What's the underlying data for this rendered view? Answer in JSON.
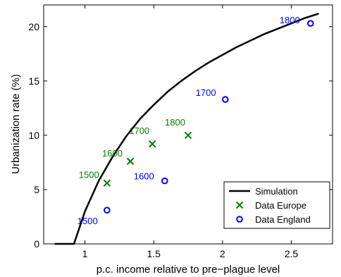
{
  "chart_data": {
    "type": "scatter",
    "title": "",
    "xlabel": "p.c. income relative to pre−plague level",
    "ylabel": "Urbanization rate (%)",
    "xlim": [
      0.7,
      2.8
    ],
    "ylim": [
      0,
      22
    ],
    "xticks": [
      1,
      1.5,
      2,
      2.5
    ],
    "xtick_labels": [
      "1",
      "1.5",
      "2",
      "2.5"
    ],
    "yticks": [
      0,
      5,
      10,
      15,
      20
    ],
    "ytick_labels": [
      "0",
      "5",
      "10",
      "15",
      "20"
    ],
    "grid": false,
    "legend_position": "bottom-right",
    "series": [
      {
        "name": "Simulation",
        "kind": "line",
        "color": "#000000",
        "x": [
          0.78,
          0.92,
          1.0,
          1.1,
          1.2,
          1.3,
          1.4,
          1.5,
          1.6,
          1.7,
          1.8,
          1.9,
          2.0,
          2.1,
          2.2,
          2.3,
          2.4,
          2.5,
          2.6,
          2.7
        ],
        "y": [
          0.0,
          0.0,
          3.0,
          5.8,
          8.0,
          9.9,
          11.5,
          12.8,
          14.0,
          15.0,
          15.9,
          16.7,
          17.4,
          18.1,
          18.7,
          19.3,
          19.8,
          20.3,
          20.8,
          21.2
        ]
      },
      {
        "name": "Data Europe",
        "kind": "x-marker",
        "color": "#007f00",
        "x": [
          1.16,
          1.33,
          1.49,
          1.75
        ],
        "y": [
          5.6,
          7.6,
          9.2,
          10.0
        ],
        "labels": [
          "1500",
          "1600",
          "1700",
          "1800"
        ]
      },
      {
        "name": "Data England",
        "kind": "o-marker",
        "color": "#0000ff",
        "x": [
          1.16,
          1.58,
          2.02,
          2.64
        ],
        "y": [
          3.1,
          5.8,
          13.3,
          20.3
        ],
        "labels": [
          "1500",
          "1600",
          "1700",
          "1800"
        ]
      }
    ]
  }
}
